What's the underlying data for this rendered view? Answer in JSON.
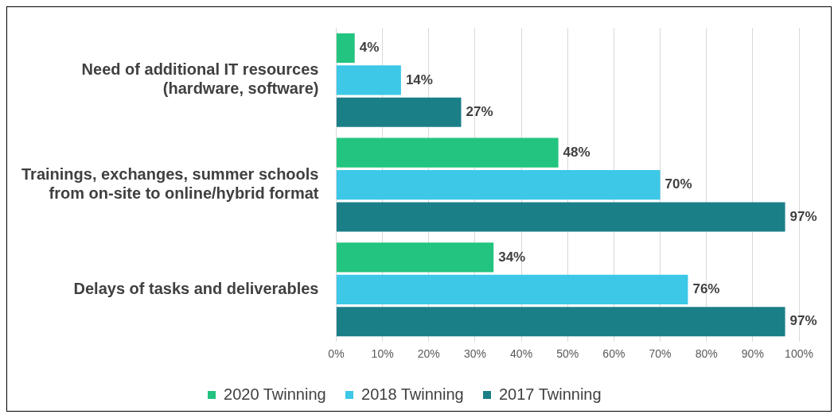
{
  "chart_data": {
    "type": "bar",
    "orientation": "horizontal",
    "categories": [
      "Need of additional IT resources (hardware, software)",
      "Trainings, exchanges, summer schools from on-site to online/hybrid format",
      "Delays of tasks and deliverables"
    ],
    "series": [
      {
        "name": "2020 Twinning",
        "color": "#22c47f",
        "values": [
          4,
          48,
          34
        ],
        "value_labels": [
          "4%",
          "48%",
          "34%"
        ]
      },
      {
        "name": "2018 Twinning",
        "color": "#3cc8e6",
        "values": [
          14,
          70,
          76
        ],
        "value_labels": [
          "14%",
          "70%",
          "76%"
        ]
      },
      {
        "name": "2017 Twinning",
        "color": "#1b7f88",
        "values": [
          27,
          97,
          97
        ],
        "value_labels": [
          "27%",
          "97%",
          "97%"
        ]
      }
    ],
    "xlim": [
      0,
      100
    ],
    "xticks": [
      {
        "value": 0,
        "label": "0%"
      },
      {
        "value": 10,
        "label": "10%"
      },
      {
        "value": 20,
        "label": "20%"
      },
      {
        "value": 30,
        "label": "30%"
      },
      {
        "value": 40,
        "label": "40%"
      },
      {
        "value": 50,
        "label": "50%"
      },
      {
        "value": 60,
        "label": "60%"
      },
      {
        "value": 70,
        "label": "70%"
      },
      {
        "value": 80,
        "label": "80%"
      },
      {
        "value": 90,
        "label": "90%"
      },
      {
        "value": 100,
        "label": "100%"
      }
    ],
    "grid": "x",
    "legend": "bottom"
  }
}
